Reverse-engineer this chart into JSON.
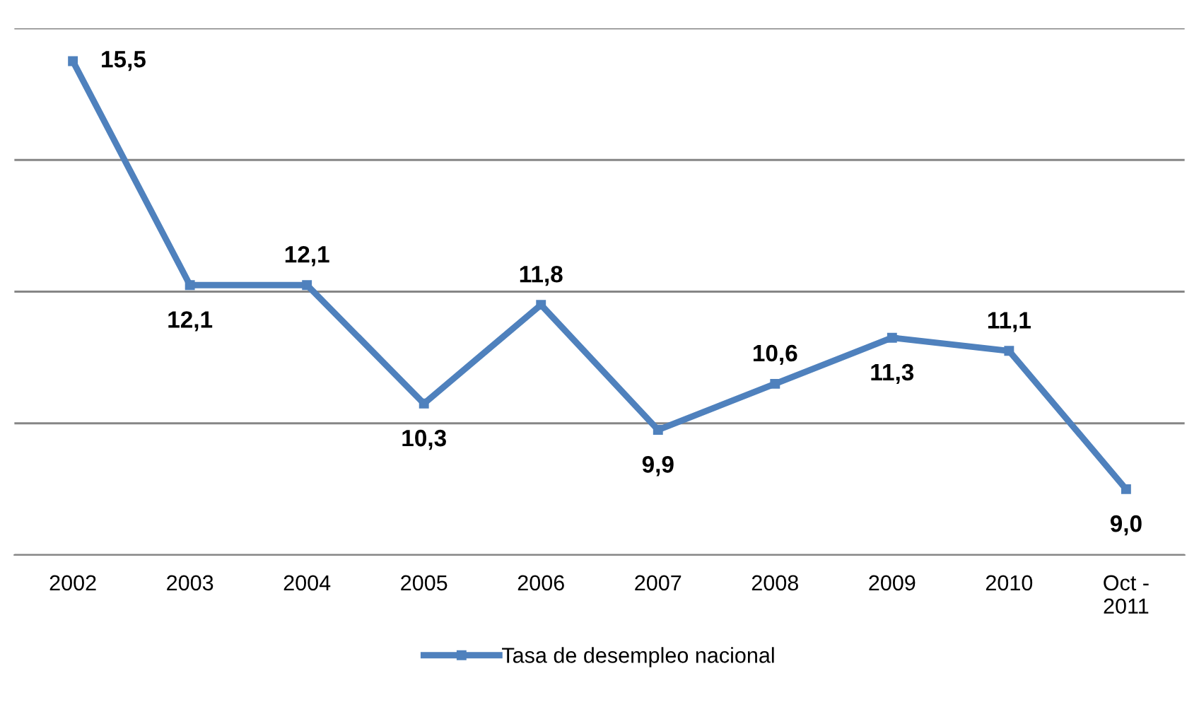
{
  "chart_data": {
    "type": "line",
    "categories": [
      "2002",
      "2003",
      "2004",
      "2005",
      "2006",
      "2007",
      "2008",
      "2009",
      "2010",
      "Oct -\n2011"
    ],
    "series": [
      {
        "name": "Tasa de desempleo nacional",
        "color": "#4f81bd",
        "values": [
          15.5,
          12.1,
          12.1,
          10.3,
          11.8,
          9.9,
          10.6,
          11.3,
          11.1,
          9.0
        ],
        "value_labels": [
          "15,5",
          "12,1",
          "12,1",
          "10,3",
          "11,8",
          "9,9",
          "10,6",
          "11,3",
          "11,1",
          "9,0"
        ]
      }
    ],
    "grid": "y",
    "legend": "bottom",
    "marker": "square",
    "line_style": "solid",
    "tick_labels": "x"
  }
}
